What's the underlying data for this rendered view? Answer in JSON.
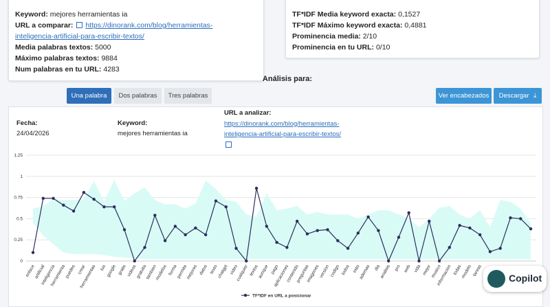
{
  "left_card": [
    {
      "label": "Keyword:",
      "value": "mejores herramientas ia"
    },
    {
      "label": "URL a comparar:",
      "link": "https://dinorank.com/blog/herramientas-inteligencia-artificial-para-escribir-textos/"
    },
    {
      "label": "Media palabras textos:",
      "value": 5000
    },
    {
      "label": "Máximo palabras textos:",
      "value": 9884
    },
    {
      "label": "Num palabras en tu URL:",
      "value": 4283
    }
  ],
  "right_card": [
    {
      "label": "TF*IDF Media keyword exacta:",
      "value": "0,1527"
    },
    {
      "label": "TF*IDF Máximo keyword exacta:",
      "value": "0,4881"
    },
    {
      "label": "Prominencia media:",
      "value": "2/10"
    },
    {
      "label": "Prominencia en tu URL:",
      "value": "0/10"
    }
  ],
  "analysis_title": "Análisis para:",
  "tabs": [
    "Una palabra",
    "Dos palabras",
    "Tres palabras"
  ],
  "active_tab": 0,
  "actions": [
    "Ver encabezados",
    "Descargar"
  ],
  "info": [
    {
      "label": "Fecha:",
      "value": "24/04/2026"
    },
    {
      "label": "Keyword:",
      "value": "mejores herramientas ia"
    },
    {
      "label": "URL a analizar:",
      "link": "https://dinorank.com/blog/herramientas-inteligencia-artificial-para-escribir-textos/"
    }
  ],
  "chart_data": {
    "type": "line",
    "categories": [
      "enlace",
      "artificial",
      "inteligencia",
      "herramienta",
      "puedes",
      "crear",
      "herramientas",
      "tus",
      "google",
      "gratis",
      "videos",
      "gratuita",
      "tambien",
      "modelos",
      "forma",
      "permite",
      "mejores",
      "datos",
      "texto",
      "chatgpt",
      "video",
      "cualquier",
      "textos",
      "aunque",
      "pago",
      "aplicaciones",
      "contenido",
      "preguntas",
      "imagenes",
      "version",
      "codigo",
      "todos",
      "esto",
      "ademas",
      "dia",
      "analisis",
      "pro",
      "web",
      "vida",
      "mejor",
      "musico",
      "informacion",
      "todas",
      "modelo",
      "tareas",
      null,
      null,
      null,
      null,
      null
    ],
    "series": [
      {
        "name": "TF*IDF en URL a posicionar",
        "color": "#2b2d5c",
        "values": [
          0.1,
          0.74,
          0.74,
          0.66,
          0.59,
          0.81,
          0.73,
          0.64,
          0.64,
          0.37,
          0.0,
          0.16,
          0.54,
          0.24,
          0.41,
          0.31,
          0.39,
          0.31,
          0.71,
          0.64,
          0.15,
          0.0,
          0.86,
          0.41,
          0.22,
          0.16,
          0.47,
          0.32,
          0.36,
          0.37,
          0.24,
          0.15,
          0.33,
          0.52,
          0.36,
          0.0,
          0.28,
          0.57,
          0.0,
          0.47,
          0.0,
          0.16,
          0.42,
          0.39,
          0.31,
          0.11,
          0.15,
          0.51,
          0.5,
          0.38
        ]
      }
    ],
    "band": {
      "color": "#d9fbf6",
      "upper": [
        0.62,
        0.65,
        0.73,
        0.72,
        0.72,
        0.73,
        0.95,
        0.7,
        0.96,
        0.71,
        0.8,
        0.87,
        0.72,
        0.67,
        0.67,
        0.62,
        0.68,
        0.95,
        0.85,
        0.72,
        0.7,
        0.55,
        0.52,
        0.8,
        0.6,
        0.62,
        0.65,
        0.55,
        0.58,
        0.55,
        0.55,
        0.55,
        0.5,
        0.55,
        0.6,
        0.6,
        0.55,
        0.5,
        0.4,
        0.5,
        0.63,
        0.65,
        0.55,
        0.5,
        0.6,
        0.4,
        0.72,
        0.7,
        0.62,
        0.45
      ],
      "lower": [
        0.45,
        0.3,
        0.2,
        0.1,
        0.08,
        0.08,
        0.08,
        0.07,
        0.05,
        0.04,
        0.03,
        0.02,
        0.02,
        0.02,
        0.02,
        0.02,
        0.02,
        0.02,
        0.02,
        0.02,
        0.02,
        0.02,
        0.02,
        0.02,
        0.02,
        0.02,
        0.02,
        0.02,
        0.02,
        0.02,
        0.02,
        0.02,
        0.02,
        0.02,
        0.02,
        0.02,
        0.02,
        0.02,
        0.02,
        0.02,
        0.02,
        0.02,
        0.02,
        0.02,
        0.02,
        0.02,
        0.02,
        0.02,
        0.02,
        0.02
      ]
    },
    "ylim": [
      0,
      1.25
    ],
    "yticks": [
      0,
      0.25,
      0.5,
      0.75,
      1,
      1.25
    ],
    "grid": true,
    "legend": "bottom"
  },
  "copilot": "Copilot"
}
